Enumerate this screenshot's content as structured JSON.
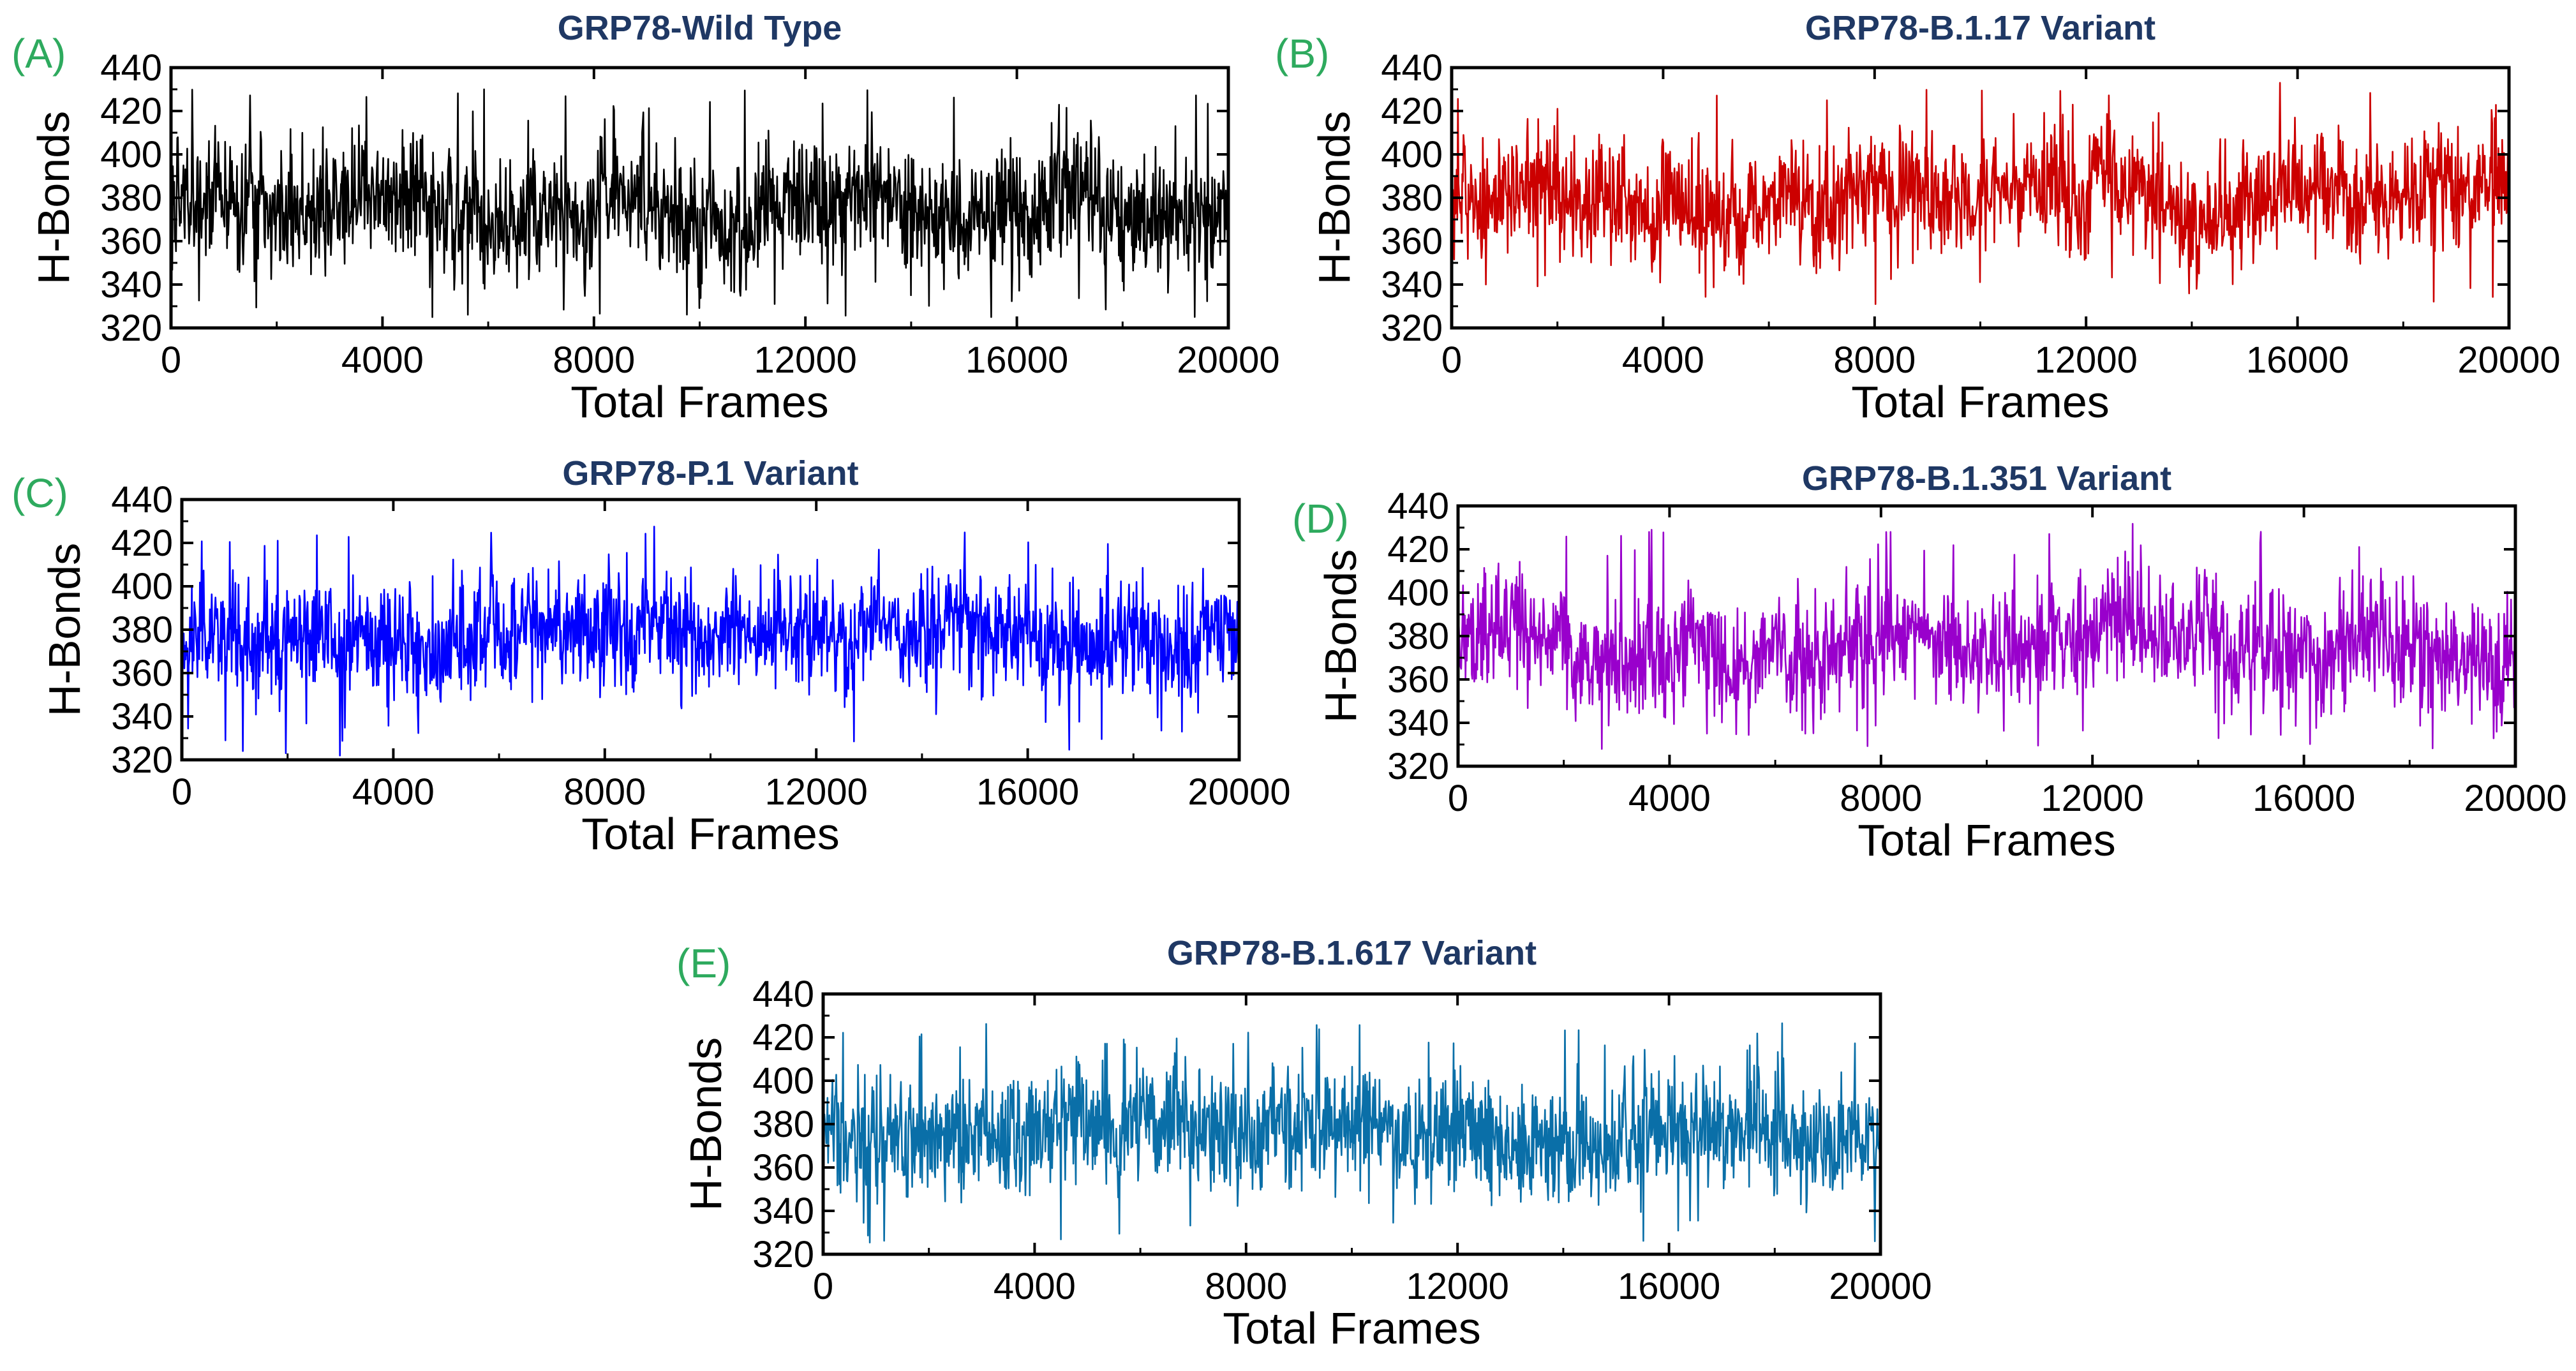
{
  "chart_data": [
    {
      "type": "line",
      "label": "(A)",
      "title": "GRP78-Wild Type",
      "xlabel": "Total Frames",
      "ylabel": "H-Bonds",
      "color": "#000000",
      "xlim": [
        0,
        20000
      ],
      "ylim": [
        320,
        440
      ],
      "xticks": [
        0,
        4000,
        8000,
        12000,
        16000,
        20000
      ],
      "yticks": [
        320,
        340,
        360,
        380,
        400,
        420,
        440
      ],
      "grid": false,
      "series": [
        {
          "name": "GRP78-Wild Type",
          "mean": 377,
          "spread": 16,
          "min": 325,
          "max": 430,
          "n_frames": 20000
        }
      ]
    },
    {
      "type": "line",
      "label": "(B)",
      "title": "GRP78-B.1.17 Variant",
      "xlabel": "Total Frames",
      "ylabel": "H-Bonds",
      "color": "#cc0000",
      "xlim": [
        0,
        20000
      ],
      "ylim": [
        320,
        440
      ],
      "xticks": [
        0,
        4000,
        8000,
        12000,
        16000,
        20000
      ],
      "yticks": [
        320,
        340,
        360,
        380,
        400,
        420,
        440
      ],
      "grid": false,
      "series": [
        {
          "name": "GRP78-B.1.17 Variant",
          "mean": 379,
          "spread": 15,
          "min": 323,
          "max": 433,
          "n_frames": 20000
        }
      ]
    },
    {
      "type": "line",
      "label": "(C)",
      "title": "GRP78-P.1 Variant",
      "xlabel": "Total Frames",
      "ylabel": "H-Bonds",
      "color": "#0000ff",
      "xlim": [
        0,
        20000
      ],
      "ylim": [
        320,
        440
      ],
      "xticks": [
        0,
        4000,
        8000,
        12000,
        16000,
        20000
      ],
      "yticks": [
        320,
        340,
        360,
        380,
        400,
        420,
        440
      ],
      "grid": false,
      "series": [
        {
          "name": "GRP78-P.1 Variant",
          "mean": 374,
          "spread": 15,
          "min": 322,
          "max": 428,
          "n_frames": 20000
        }
      ]
    },
    {
      "type": "line",
      "label": "(D)",
      "title": "GRP78-B.1.351 Variant",
      "xlabel": "Total Frames",
      "ylabel": "H-Bonds",
      "color": "#9900cc",
      "xlim": [
        0,
        20000
      ],
      "ylim": [
        320,
        440
      ],
      "xticks": [
        0,
        4000,
        8000,
        12000,
        16000,
        20000
      ],
      "yticks": [
        320,
        340,
        360,
        380,
        400,
        420,
        440
      ],
      "grid": false,
      "series": [
        {
          "name": "GRP78-B.1.351 Variant",
          "mean": 378,
          "spread": 15,
          "min": 327,
          "max": 432,
          "n_frames": 20000
        }
      ]
    },
    {
      "type": "line",
      "label": "(E)",
      "title": "GRP78-B.1.617 Variant",
      "xlabel": "Total Frames",
      "ylabel": "H-Bonds",
      "color": "#0a6fa8",
      "xlim": [
        0,
        20000
      ],
      "ylim": [
        320,
        440
      ],
      "xticks": [
        0,
        4000,
        8000,
        12000,
        16000,
        20000
      ],
      "yticks": [
        320,
        340,
        360,
        380,
        400,
        420,
        440
      ],
      "grid": false,
      "series": [
        {
          "name": "GRP78-B.1.617 Variant",
          "mean": 376,
          "spread": 15,
          "min": 320,
          "max": 431,
          "n_frames": 20000
        }
      ]
    }
  ]
}
